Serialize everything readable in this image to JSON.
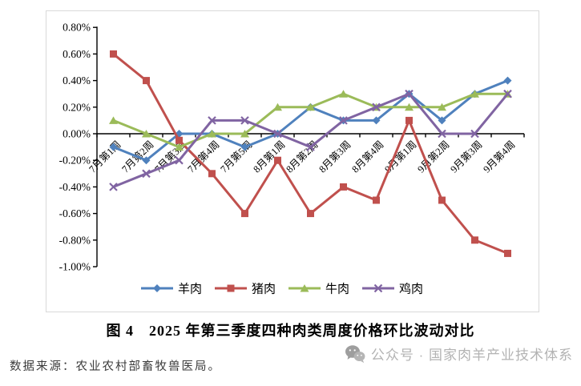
{
  "chart_data": {
    "type": "line",
    "title": "图 4　2025 年第三季度四种肉类周度价格环比波动对比",
    "categories": [
      "7月第1周",
      "7月第2周",
      "7月第3周",
      "7月第4周",
      "7月第5周",
      "8月第1周",
      "8月第2周",
      "8月第3周",
      "8月第4周",
      "9月第1周",
      "9月第2周",
      "9月第3周",
      "9月第4周"
    ],
    "series": [
      {
        "name": "羊肉",
        "color": "#4F81BD",
        "marker": "diamond",
        "values": [
          -0.1,
          -0.2,
          0.0,
          0.0,
          -0.1,
          0.0,
          0.2,
          0.1,
          0.1,
          0.3,
          0.1,
          0.3,
          0.4
        ]
      },
      {
        "name": "猪肉",
        "color": "#C0504D",
        "marker": "square",
        "values": [
          0.6,
          0.4,
          -0.05,
          -0.3,
          -0.6,
          -0.2,
          -0.6,
          -0.4,
          -0.5,
          0.1,
          -0.5,
          -0.8,
          -0.9
        ]
      },
      {
        "name": "牛肉",
        "color": "#9BBB59",
        "marker": "triangle",
        "values": [
          0.1,
          0.0,
          -0.1,
          0.0,
          0.0,
          0.2,
          0.2,
          0.3,
          0.2,
          0.2,
          0.2,
          0.3,
          0.3
        ]
      },
      {
        "name": "鸡肉",
        "color": "#8064A2",
        "marker": "x",
        "values": [
          -0.4,
          -0.3,
          -0.2,
          0.1,
          0.1,
          0.0,
          -0.1,
          0.1,
          0.2,
          0.3,
          0.0,
          0.0,
          0.3
        ]
      }
    ],
    "ylim": [
      -1.0,
      0.8
    ],
    "ytick_step": 0.2,
    "ytick_labels": [
      "0.80%",
      "0.60%",
      "0.40%",
      "0.20%",
      "0.00%",
      "-0.20%",
      "-0.40%",
      "-0.60%",
      "-0.80%",
      "-1.00%"
    ],
    "xlabel": "",
    "ylabel": "",
    "grid": false,
    "legend_position": "bottom",
    "axis_color": "#000000",
    "frame_color": "#d9d9d9"
  },
  "caption": {
    "text": "图 4　2025 年第三季度四种肉类周度价格环比波动对比"
  },
  "footer": {
    "source": "数据来源：农业农村部畜牧兽医局。",
    "watermark": "公众号 · 国家肉羊产业技术体系"
  }
}
